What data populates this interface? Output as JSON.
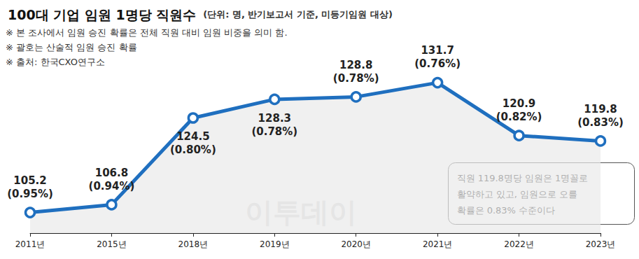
{
  "chart_data": {
    "type": "line",
    "title": "100대 기업 임원 1명당 직원수",
    "subtitle": "(단위: 명, 반기보고서 기준, 미등기임원 대상)",
    "notes": [
      "※ 본 조사에서 임원 승진 확률은 전체 직원 대비 임원 비중을 의미 함.",
      "※ 괄호는 산술적 임원 승진 확률",
      "※ 출처: 한국CXO연구소"
    ],
    "annotation": "직원 119.8명당 임원은 1명꼴로\n활약하고 있고, 임원으로 오를\n확률은 0.83% 수준이다",
    "watermark": "이투데이",
    "categories": [
      "2011년",
      "2015년",
      "2018년",
      "2019년",
      "2020년",
      "2021년",
      "2022년",
      "2023년"
    ],
    "values": [
      105.2,
      106.8,
      124.5,
      128.3,
      128.8,
      131.7,
      120.9,
      119.8
    ],
    "value_labels": [
      "105.2\n(0.95%)",
      "106.8\n(0.94%)",
      "124.5\n(0.80%)",
      "128.3\n(0.78%)",
      "128.8\n(0.78%)",
      "131.7\n(0.76%)",
      "120.9\n(0.82%)",
      "119.8\n(0.83%)"
    ],
    "color": "#1f6fbf",
    "marker": "circle",
    "ylim": [
      101,
      140
    ],
    "grid": false,
    "data_labels": true,
    "tick_labels": "x"
  }
}
